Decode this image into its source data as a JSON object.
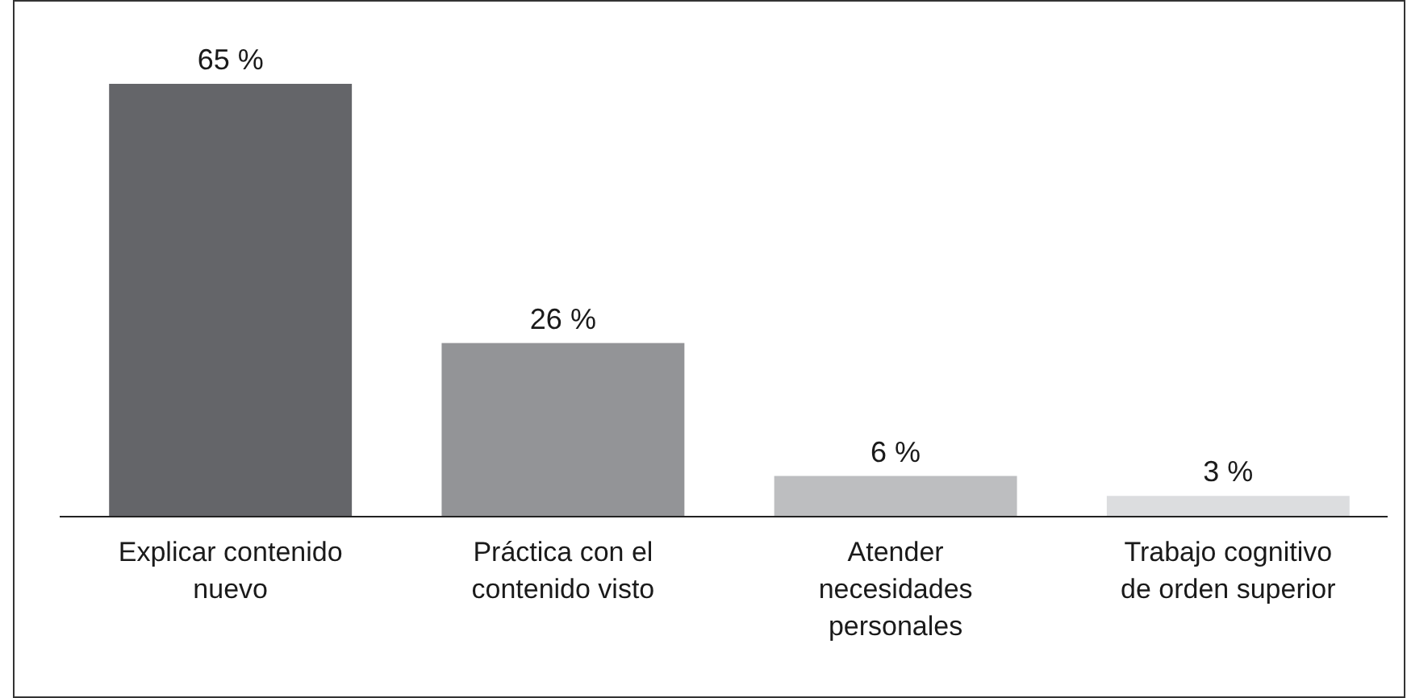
{
  "chart_data": {
    "type": "bar",
    "categories": [
      "Explicar contenido nuevo",
      "Práctica con el contenido visto",
      "Atender necesidades personales",
      "Trabajo cognitivo de orden superior"
    ],
    "values": [
      65,
      26,
      6,
      3
    ],
    "colors": [
      "#646569",
      "#939497",
      "#bdbec0",
      "#dcdddf"
    ],
    "value_labels": [
      "65 %",
      "26 %",
      "6 %",
      "3 %"
    ]
  }
}
